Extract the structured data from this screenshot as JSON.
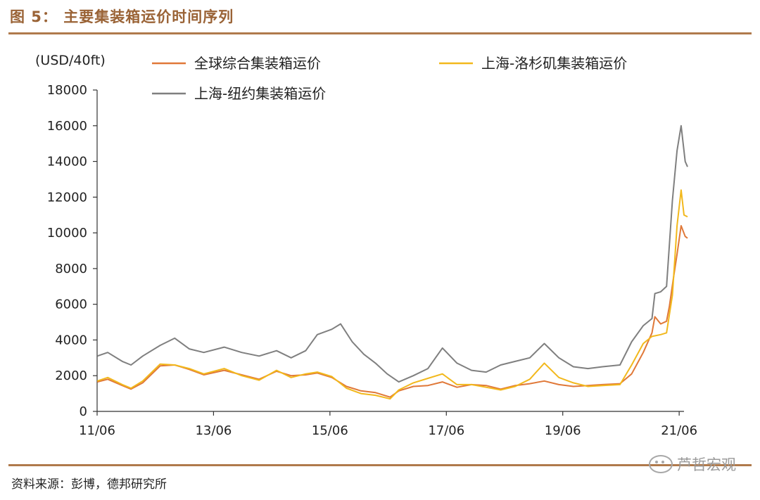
{
  "figure": {
    "title": "图 5：  主要集装箱运价时间序列",
    "source": "资料来源：彭博，德邦研究所",
    "watermark": "芦哲宏观"
  },
  "colors": {
    "accent": "#b07a4c",
    "global": "#e07838",
    "la": "#f2b81c",
    "ny": "#7f7f7f"
  },
  "chart_data": {
    "type": "line",
    "unit_label": "(USD/40ft)",
    "ylim": [
      0,
      18000
    ],
    "yticks": [
      0,
      2000,
      4000,
      6000,
      8000,
      10000,
      12000,
      14000,
      16000,
      18000
    ],
    "xlim": [
      2011.417,
      2021.5
    ],
    "xticks": [
      {
        "label": "11/06",
        "value": 2011.417
      },
      {
        "label": "13/06",
        "value": 2013.417
      },
      {
        "label": "15/06",
        "value": 2015.417
      },
      {
        "label": "17/06",
        "value": 2017.417
      },
      {
        "label": "19/06",
        "value": 2019.417
      },
      {
        "label": "21/06",
        "value": 2021.417
      }
    ],
    "legend_placement": "top",
    "grid": false,
    "series": [
      {
        "name": "全球综合集装箱运价",
        "color": "#e07838",
        "points": [
          [
            2011.42,
            1650
          ],
          [
            2011.6,
            1800
          ],
          [
            2011.85,
            1450
          ],
          [
            2012.0,
            1250
          ],
          [
            2012.2,
            1600
          ],
          [
            2012.5,
            2550
          ],
          [
            2012.75,
            2600
          ],
          [
            2013.0,
            2350
          ],
          [
            2013.25,
            2050
          ],
          [
            2013.6,
            2300
          ],
          [
            2013.9,
            2050
          ],
          [
            2014.2,
            1800
          ],
          [
            2014.5,
            2250
          ],
          [
            2014.75,
            2000
          ],
          [
            2015.0,
            2050
          ],
          [
            2015.2,
            2150
          ],
          [
            2015.45,
            1900
          ],
          [
            2015.7,
            1400
          ],
          [
            2015.95,
            1150
          ],
          [
            2016.2,
            1050
          ],
          [
            2016.45,
            800
          ],
          [
            2016.6,
            1150
          ],
          [
            2016.85,
            1400
          ],
          [
            2017.1,
            1450
          ],
          [
            2017.35,
            1650
          ],
          [
            2017.6,
            1350
          ],
          [
            2017.85,
            1500
          ],
          [
            2018.1,
            1450
          ],
          [
            2018.35,
            1250
          ],
          [
            2018.6,
            1450
          ],
          [
            2018.85,
            1550
          ],
          [
            2019.1,
            1700
          ],
          [
            2019.35,
            1500
          ],
          [
            2019.6,
            1400
          ],
          [
            2019.85,
            1450
          ],
          [
            2020.1,
            1500
          ],
          [
            2020.4,
            1550
          ],
          [
            2020.6,
            2100
          ],
          [
            2020.8,
            3300
          ],
          [
            2020.95,
            4400
          ],
          [
            2021.0,
            5300
          ],
          [
            2021.1,
            4900
          ],
          [
            2021.2,
            5050
          ],
          [
            2021.25,
            5900
          ],
          [
            2021.32,
            7500
          ],
          [
            2021.38,
            8800
          ],
          [
            2021.45,
            10400
          ],
          [
            2021.52,
            9800
          ],
          [
            2021.56,
            9700
          ]
        ]
      },
      {
        "name": "上海-洛杉矶集装箱运价",
        "color": "#f2b81c",
        "points": [
          [
            2011.42,
            1700
          ],
          [
            2011.6,
            1900
          ],
          [
            2011.85,
            1500
          ],
          [
            2012.0,
            1300
          ],
          [
            2012.2,
            1700
          ],
          [
            2012.5,
            2650
          ],
          [
            2012.75,
            2600
          ],
          [
            2013.0,
            2400
          ],
          [
            2013.25,
            2100
          ],
          [
            2013.6,
            2400
          ],
          [
            2013.9,
            2000
          ],
          [
            2014.2,
            1750
          ],
          [
            2014.5,
            2300
          ],
          [
            2014.75,
            1900
          ],
          [
            2015.0,
            2100
          ],
          [
            2015.2,
            2200
          ],
          [
            2015.45,
            1950
          ],
          [
            2015.7,
            1300
          ],
          [
            2015.95,
            1000
          ],
          [
            2016.2,
            900
          ],
          [
            2016.45,
            700
          ],
          [
            2016.6,
            1200
          ],
          [
            2016.85,
            1600
          ],
          [
            2017.1,
            1850
          ],
          [
            2017.35,
            2100
          ],
          [
            2017.6,
            1500
          ],
          [
            2017.85,
            1500
          ],
          [
            2018.1,
            1350
          ],
          [
            2018.35,
            1200
          ],
          [
            2018.6,
            1400
          ],
          [
            2018.85,
            1800
          ],
          [
            2019.1,
            2700
          ],
          [
            2019.35,
            1900
          ],
          [
            2019.6,
            1600
          ],
          [
            2019.85,
            1400
          ],
          [
            2020.1,
            1450
          ],
          [
            2020.4,
            1500
          ],
          [
            2020.6,
            2600
          ],
          [
            2020.8,
            3800
          ],
          [
            2020.95,
            4200
          ],
          [
            2021.1,
            4300
          ],
          [
            2021.2,
            4400
          ],
          [
            2021.3,
            6500
          ],
          [
            2021.38,
            10400
          ],
          [
            2021.45,
            12400
          ],
          [
            2021.5,
            11000
          ],
          [
            2021.56,
            10900
          ]
        ]
      },
      {
        "name": "上海-纽约集装箱运价",
        "color": "#7f7f7f",
        "points": [
          [
            2011.42,
            3100
          ],
          [
            2011.6,
            3300
          ],
          [
            2011.85,
            2800
          ],
          [
            2012.0,
            2600
          ],
          [
            2012.2,
            3100
          ],
          [
            2012.5,
            3700
          ],
          [
            2012.75,
            4100
          ],
          [
            2013.0,
            3500
          ],
          [
            2013.25,
            3300
          ],
          [
            2013.6,
            3600
          ],
          [
            2013.9,
            3300
          ],
          [
            2014.2,
            3100
          ],
          [
            2014.5,
            3400
          ],
          [
            2014.75,
            3000
          ],
          [
            2015.0,
            3400
          ],
          [
            2015.2,
            4300
          ],
          [
            2015.45,
            4600
          ],
          [
            2015.6,
            4900
          ],
          [
            2015.8,
            3900
          ],
          [
            2016.0,
            3200
          ],
          [
            2016.2,
            2700
          ],
          [
            2016.4,
            2100
          ],
          [
            2016.6,
            1650
          ],
          [
            2016.85,
            2000
          ],
          [
            2017.1,
            2400
          ],
          [
            2017.35,
            3550
          ],
          [
            2017.6,
            2700
          ],
          [
            2017.85,
            2300
          ],
          [
            2018.1,
            2200
          ],
          [
            2018.35,
            2600
          ],
          [
            2018.6,
            2800
          ],
          [
            2018.85,
            3000
          ],
          [
            2019.1,
            3800
          ],
          [
            2019.35,
            3000
          ],
          [
            2019.6,
            2500
          ],
          [
            2019.85,
            2400
          ],
          [
            2020.1,
            2500
          ],
          [
            2020.4,
            2600
          ],
          [
            2020.6,
            3900
          ],
          [
            2020.8,
            4800
          ],
          [
            2020.95,
            5200
          ],
          [
            2021.0,
            6600
          ],
          [
            2021.1,
            6700
          ],
          [
            2021.2,
            7000
          ],
          [
            2021.3,
            11800
          ],
          [
            2021.38,
            14600
          ],
          [
            2021.45,
            16000
          ],
          [
            2021.52,
            14000
          ],
          [
            2021.56,
            13700
          ]
        ]
      }
    ]
  }
}
